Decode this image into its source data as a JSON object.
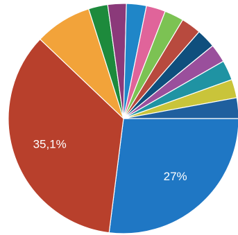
{
  "chart_data": {
    "type": "pie",
    "categories": [
      null,
      null,
      null,
      null,
      null,
      null,
      null,
      null,
      null,
      null,
      null,
      null,
      null,
      null
    ],
    "values": [
      27,
      35.1,
      8,
      2.7,
      2.6,
      2.8,
      2.7,
      2.7,
      2.8,
      2.7,
      2.6,
      2.8,
      2.6,
      2.9
    ],
    "value_labels": [
      "27%",
      "35,1%",
      null,
      null,
      null,
      null,
      null,
      null,
      null,
      null,
      null,
      null,
      null,
      null
    ],
    "colors": [
      "#1f77c4",
      "#b8402c",
      "#f2a33a",
      "#1d8a3c",
      "#8b3a7a",
      "#1f86c8",
      "#e0649a",
      "#7cc253",
      "#b84a3e",
      "#0f4f7d",
      "#9a4f9c",
      "#1f93a3",
      "#c9c43a",
      "#1f5f9e"
    ]
  }
}
